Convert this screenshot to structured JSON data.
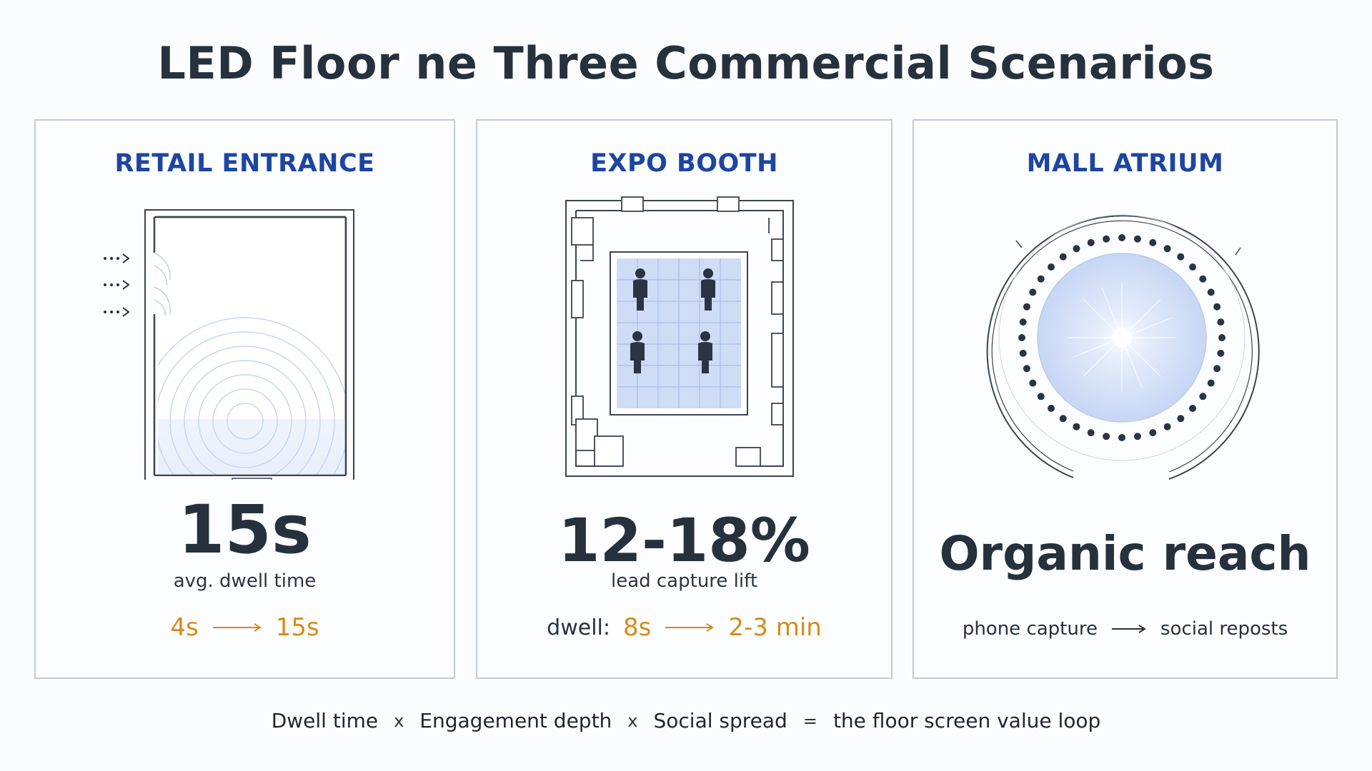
{
  "title": "LED Floor ne Three Commercial Scenarios",
  "cards": [
    {
      "title": "RETAIL ENTRANCE",
      "stat": "15s",
      "stat_label": "avg. dwell time",
      "flow_from": "4s",
      "flow_to": "15s"
    },
    {
      "title": "EXPO BOOTH",
      "stat": "12-18%",
      "stat_label": "lead capture lift",
      "flow_prefix": "dwell:",
      "flow_from": "8s",
      "flow_to": "2-3 min"
    },
    {
      "title": "MALL ATRIUM",
      "stat": "Organic reach",
      "flow_from": "phone capture",
      "flow_to": "social reposts"
    }
  ],
  "footer": {
    "terms": [
      "Dwell time",
      "Engagement depth",
      "Social spread"
    ],
    "times": "x",
    "equals": "=",
    "result": "the floor screen value loop"
  },
  "colors": {
    "heading_blue": "#1d45a2",
    "accent_orange": "#d88a1a",
    "floor_blue": "#cfdcf6",
    "dark_text": "#27313e"
  },
  "icons": [
    "entry-arrow-icon",
    "person-icon",
    "light-burst-icon"
  ]
}
